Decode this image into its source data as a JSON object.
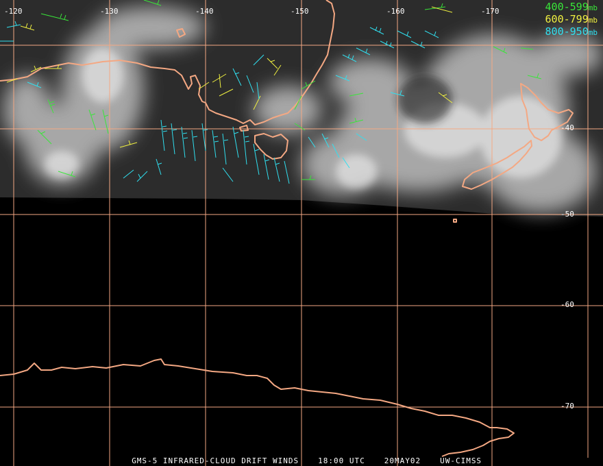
{
  "map": {
    "longitude_labels": [
      "-120",
      "-130",
      "-140",
      "-150",
      "-160",
      "-170"
    ],
    "latitude_labels": [
      "-40",
      "-50",
      "-60",
      "-70"
    ],
    "colors": {
      "grid": "#f4a883",
      "coastline": "#f4a883",
      "layer_400_599": "#39e639",
      "layer_600_799": "#f0f040",
      "layer_800_950": "#30e0f0"
    }
  },
  "legend": {
    "items": [
      {
        "range": "400-599",
        "unit": "mb",
        "color": "#39e639"
      },
      {
        "range": "600-799",
        "unit": "mb",
        "color": "#f0f040"
      },
      {
        "range": "800-950",
        "unit": "mb",
        "color": "#30e0f0"
      }
    ]
  },
  "footer": {
    "product": "GMS-5 INFRARED-CLOUD DRIFT WINDS",
    "time": "18:00 UTC",
    "date": "20MAY02",
    "source": "UW-CIMSS"
  }
}
